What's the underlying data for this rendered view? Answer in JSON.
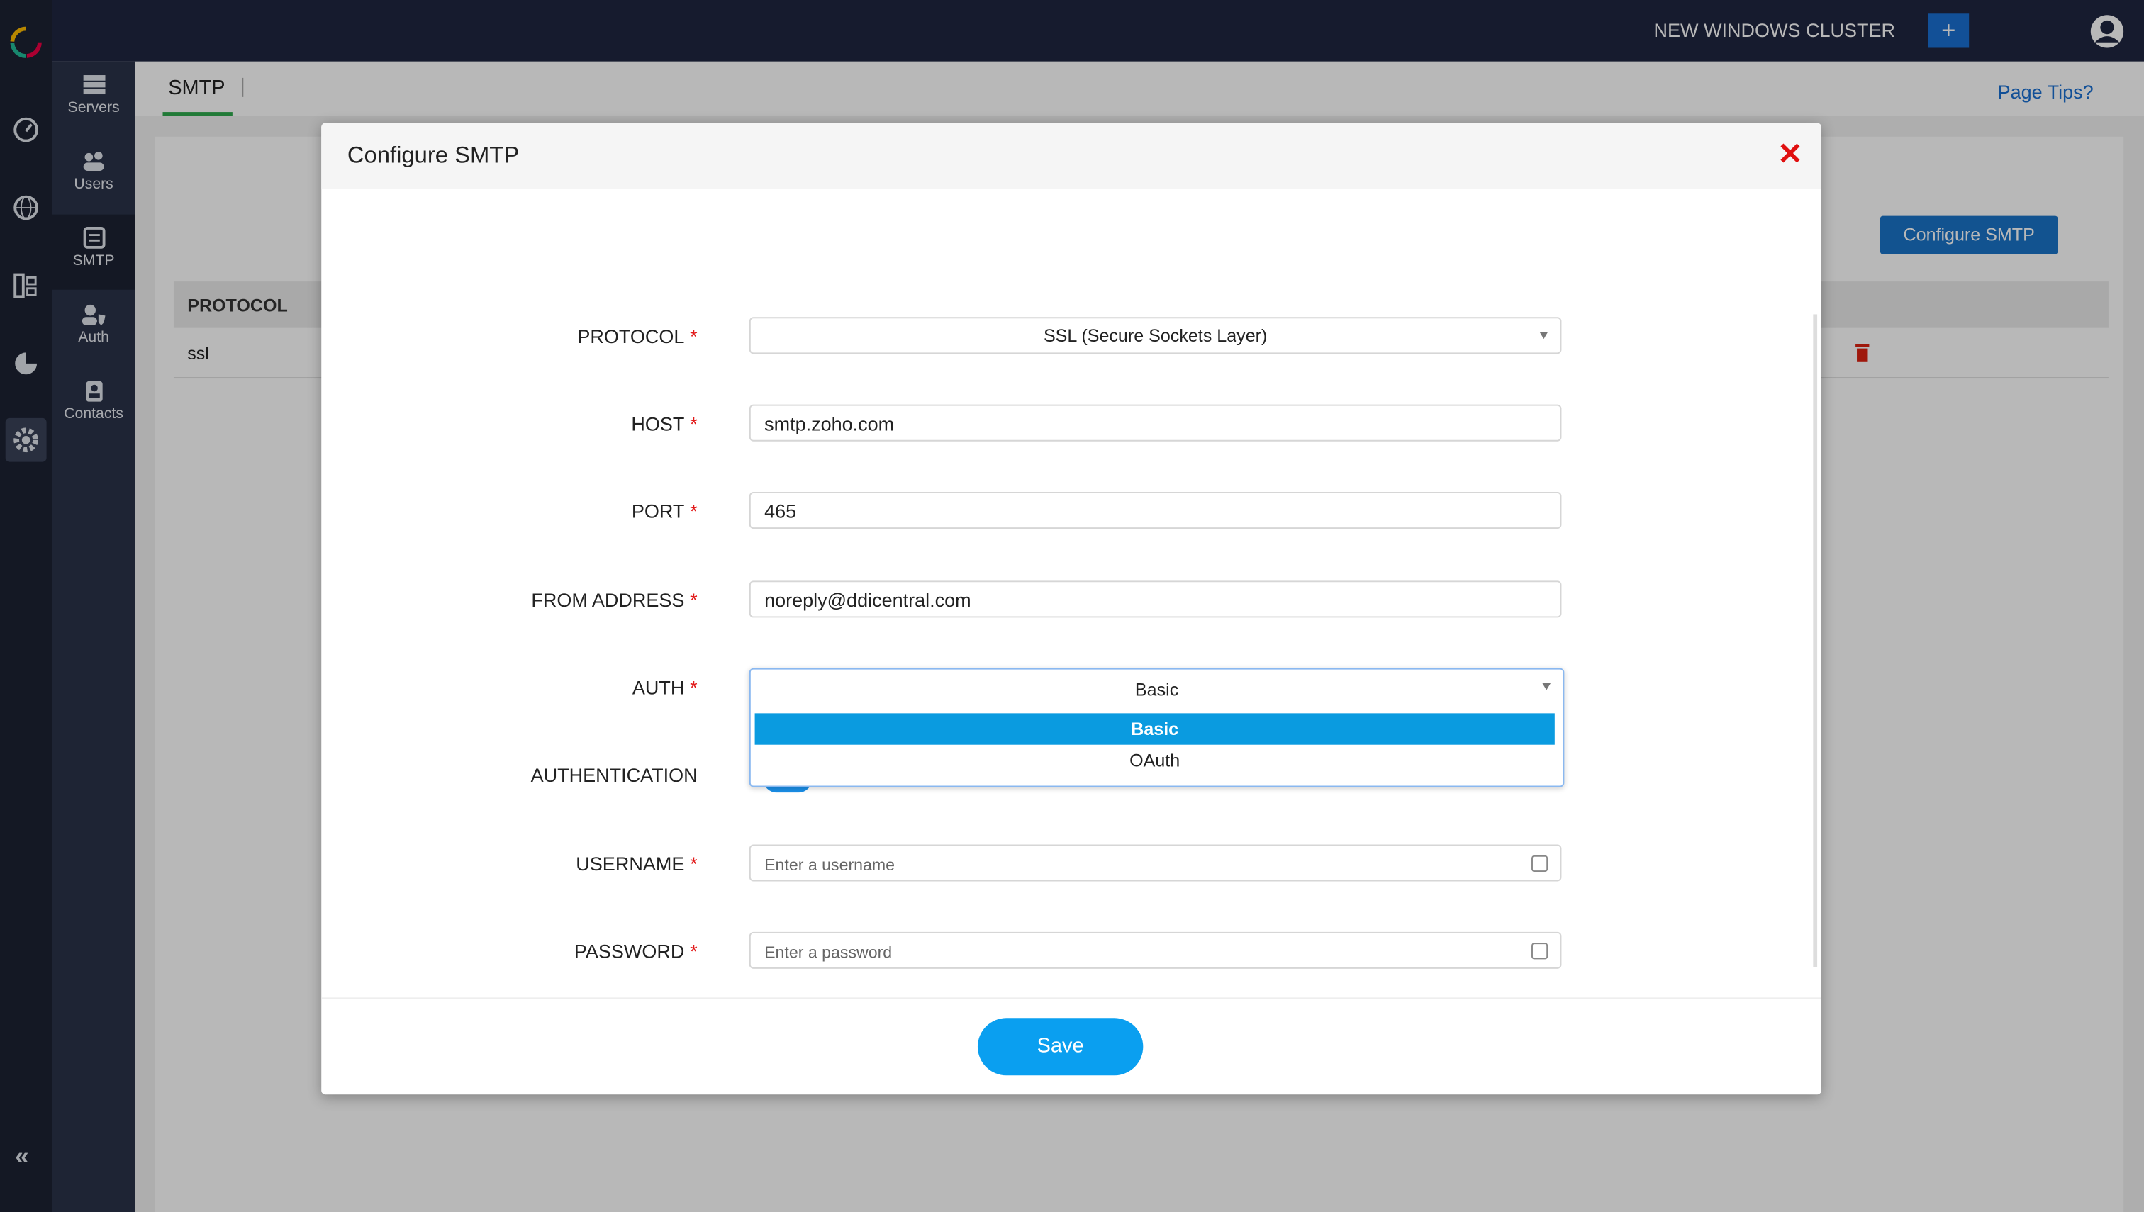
{
  "header": {
    "cluster": "NEW WINDOWS CLUSTER"
  },
  "sidebar": {
    "items": [
      "Servers",
      "Users",
      "SMTP",
      "Auth",
      "Contacts"
    ]
  },
  "page": {
    "tab": "SMTP",
    "page_tips": "Page Tips?",
    "configure_button": "Configure SMTP",
    "table": {
      "header": "PROTOCOL",
      "rows": [
        [
          "ssl"
        ]
      ]
    }
  },
  "modal": {
    "title": "Configure SMTP",
    "required_mark": "*",
    "fields": [
      {
        "label": "PROTOCOL",
        "value": "SSL (Secure Sockets Layer)"
      },
      {
        "label": "HOST",
        "value": "smtp.zoho.com"
      },
      {
        "label": "PORT",
        "value": "465"
      },
      {
        "label": "FROM ADDRESS",
        "value": "noreply@ddicentral.com"
      },
      {
        "label": "AUTH",
        "value": "Basic"
      },
      {
        "label": "AUTHENTICATION"
      },
      {
        "label": "USERNAME",
        "placeholder": "Enter a username"
      },
      {
        "label": "PASSWORD",
        "placeholder": "Enter a password"
      }
    ],
    "auth_options": [
      "Basic",
      "OAuth"
    ],
    "save": "Save"
  }
}
